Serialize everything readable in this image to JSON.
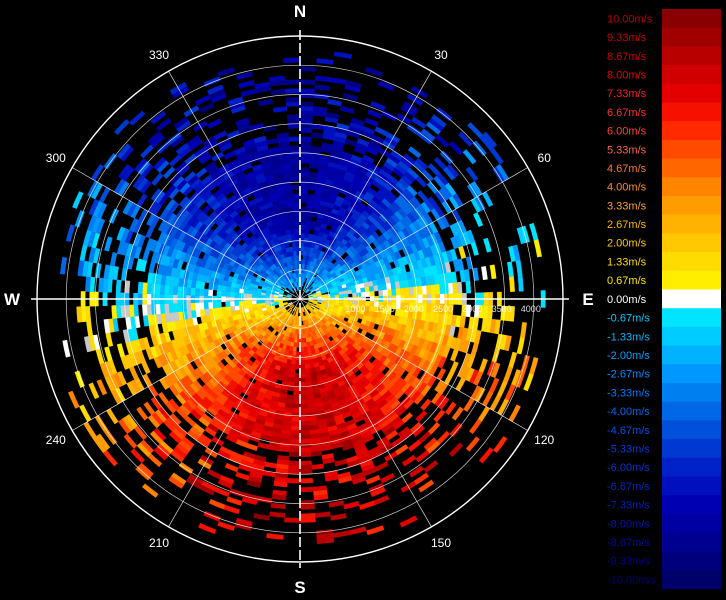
{
  "chart_data": {
    "type": "heatmap",
    "subtype": "polar-ppi",
    "azimuth_grid_step_deg": 30,
    "cardinals": [
      {
        "label": "N",
        "azimuth": 0
      },
      {
        "label": "E",
        "azimuth": 90
      },
      {
        "label": "S",
        "azimuth": 180
      },
      {
        "label": "W",
        "azimuth": 270
      }
    ],
    "degree_labels": [
      {
        "label": "30",
        "azimuth": 30
      },
      {
        "label": "60",
        "azimuth": 60
      },
      {
        "label": "120",
        "azimuth": 120
      },
      {
        "label": "150",
        "azimuth": 150
      },
      {
        "label": "210",
        "azimuth": 210
      },
      {
        "label": "240",
        "azimuth": 240
      },
      {
        "label": "300",
        "azimuth": 300
      },
      {
        "label": "330",
        "azimuth": 330
      }
    ],
    "range_rings": [
      500,
      1000,
      1500,
      2000,
      2500,
      3000,
      3500,
      4000
    ],
    "range_tick_labels": [
      "1000",
      "1500",
      "2000",
      "2500",
      "3000",
      "3500",
      "4000"
    ],
    "range_max": 4500,
    "velocity_range": [
      -10,
      10
    ],
    "colorbar": {
      "labels": [
        "10.00m/s",
        "9.33m/s",
        "8.67m/s",
        "8.00m/s",
        "7.33m/s",
        "6.67m/s",
        "6.00m/s",
        "5.33m/s",
        "4.67m/s",
        "4.00m/s",
        "3.33m/s",
        "2.67m/s",
        "2.00m/s",
        "1.33m/s",
        "0.67m/s",
        "0.00m/s",
        "-0.67m/s",
        "-1.33m/s",
        "-2.00m/s",
        "-2.67m/s",
        "-3.33m/s",
        "-4.00m/s",
        "-4.67m/s",
        "-5.33m/s",
        "-6.00m/s",
        "-6.67m/s",
        "-7.33m/s",
        "-8.00m/s",
        "-8.67m/s",
        "-9.33m/s",
        "-10.00m/s"
      ],
      "colors": [
        "#8a0000",
        "#a00000",
        "#b80000",
        "#d00000",
        "#e40000",
        "#f51000",
        "#ff2a00",
        "#ff4a00",
        "#ff6600",
        "#ff8400",
        "#ff9d00",
        "#ffb300",
        "#ffc800",
        "#ffdc00",
        "#ffee00",
        "#ffffff",
        "#00e4ff",
        "#00ccff",
        "#00b2ff",
        "#0098ff",
        "#0080f0",
        "#0068e6",
        "#0050dc",
        "#0038d2",
        "#0022c8",
        "#0010be",
        "#0000b2",
        "#0000a2",
        "#000090",
        "#00007e",
        "#00006a"
      ],
      "label_colors": [
        "#b40000",
        "#c80000",
        "#d20000",
        "#e60000",
        "#ff1e1e",
        "#ff3232",
        "#ff4632",
        "#ff6446",
        "#ff7832",
        "#ff8c28",
        "#ffa028",
        "#ffb400",
        "#ffc800",
        "#ffdc00",
        "#ffe600",
        "#ffffff",
        "#00c8ff",
        "#00b4ff",
        "#00a0ff",
        "#008cff",
        "#0078ff",
        "#0064f0",
        "#0050e6",
        "#003cdc",
        "#0032d2",
        "#0028c8",
        "#001ebe",
        "#0014b4",
        "#000aa0",
        "#00008c",
        "#000078"
      ]
    },
    "wind_field": {
      "description_params": {
        "base_scale": 8.5,
        "inner_range_for_full_speed": 1300
      },
      "cells": [
        {
          "az_start": 0,
          "az_end": 360,
          "r_start": 300,
          "r_end": 2700,
          "fill": "solid"
        },
        {
          "az_start": 270,
          "az_end": 90,
          "r_start": 2700,
          "r_end": 4000,
          "fill": "sparse"
        },
        {
          "az_start": 90,
          "az_end": 270,
          "r_start": 2700,
          "r_end": 4000,
          "fill": "sparse"
        }
      ]
    }
  }
}
